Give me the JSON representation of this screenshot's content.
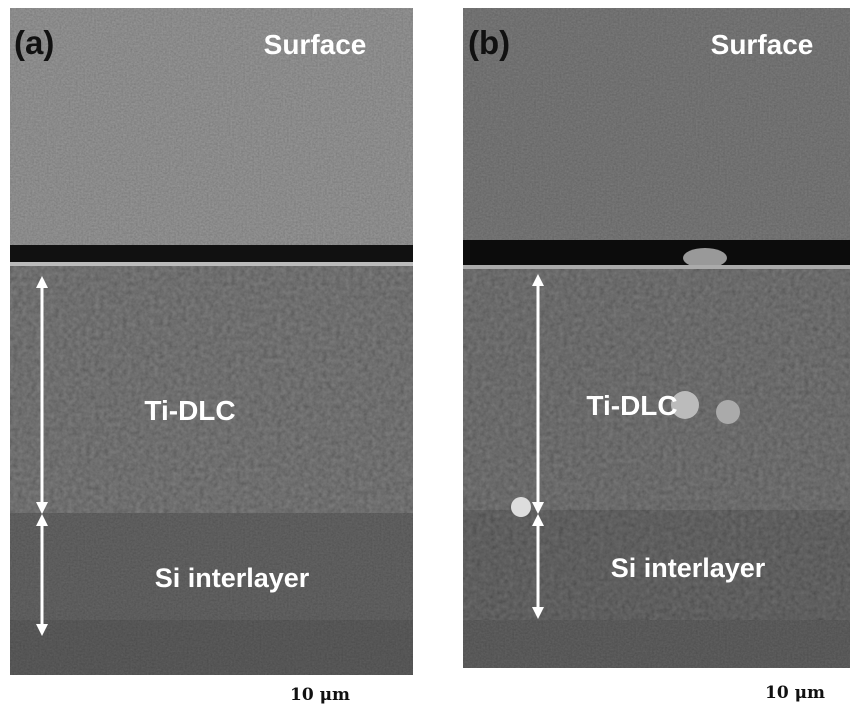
{
  "panels": [
    {
      "label": "(a)",
      "surface": "Surface",
      "layer1": "Ti-DLC",
      "layer2": "Si interlayer",
      "scale": "10 μm"
    },
    {
      "label": "(b)",
      "surface": "Surface",
      "layer1": "Ti-DLC",
      "layer2": "Si interlayer",
      "scale": "10 μm"
    }
  ]
}
